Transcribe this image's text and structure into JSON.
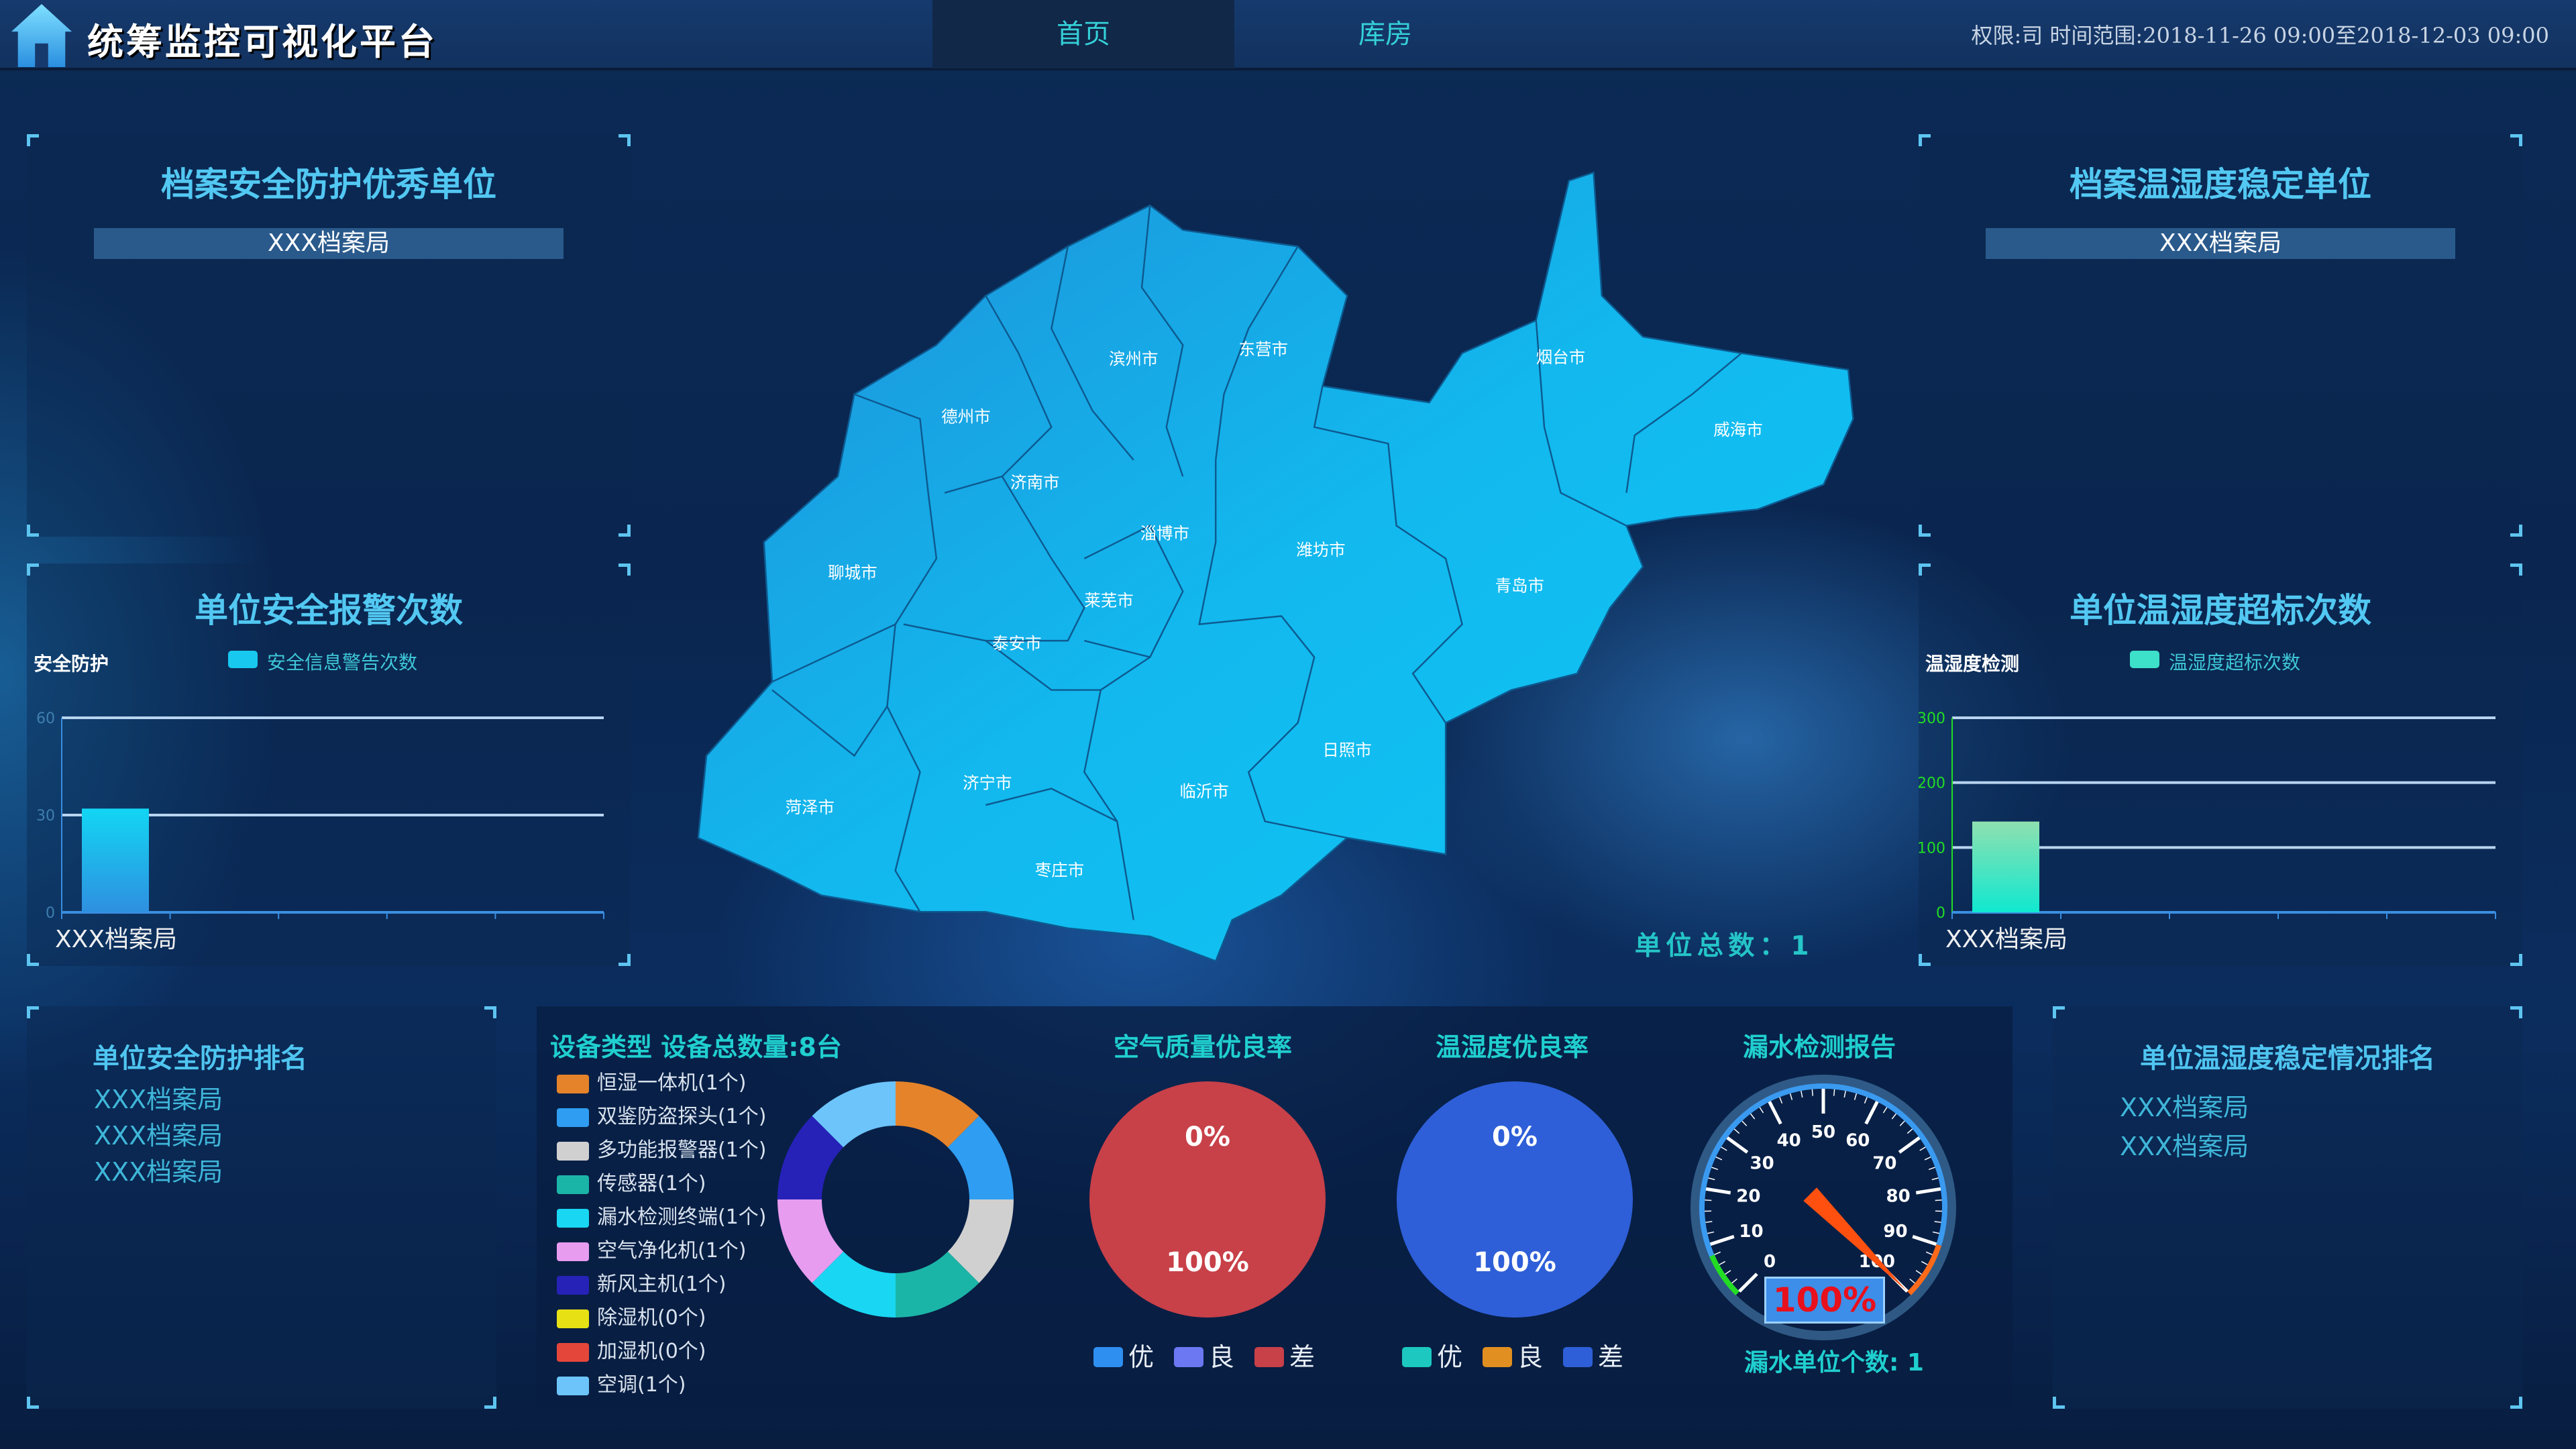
{
  "header": {
    "title": "统筹监控可视化平台",
    "tabs": [
      {
        "label": "首页",
        "active": true
      },
      {
        "label": "库房",
        "active": false
      }
    ],
    "info": "权限:司 时间范围:2018-11-26 09:00至2018-12-03 09:00"
  },
  "security_excellent": {
    "title": "档案安全防护优秀单位",
    "units": [
      "XXX档案局"
    ]
  },
  "humidity_stable": {
    "title": "档案温湿度稳定单位",
    "units": [
      "XXX档案局"
    ]
  },
  "security_alarm": {
    "title": "单位安全报警次数",
    "ylabel": "安全防护",
    "legend": "安全信息警告次数",
    "color": "#18c8ef"
  },
  "humidity_exceed": {
    "title": "单位温湿度超标次数",
    "ylabel": "温湿度检测",
    "legend": "温湿度超标次数",
    "color": "#3de0c8"
  },
  "map": {
    "cities": [
      "滨州市",
      "东营市",
      "烟台市",
      "威海市",
      "德州市",
      "济南市",
      "淄博市",
      "潍坊市",
      "青岛市",
      "聊城市",
      "莱芜市",
      "泰安市",
      "日照市",
      "济宁市",
      "临沂市",
      "菏泽市",
      "枣庄市"
    ],
    "total_label": "单位总数：1"
  },
  "security_rank": {
    "title": "单位安全防护排名",
    "items": [
      "XXX档案局",
      "XXX档案局",
      "XXX档案局"
    ]
  },
  "humidity_rank": {
    "title": "单位温湿度稳定情况排名",
    "items": [
      "XXX档案局",
      "XXX档案局"
    ]
  },
  "devices": {
    "title": "设备类型 设备总数量:8台"
  },
  "air_quality": {
    "title": "空气质量优良率",
    "top_label": "0%",
    "bottom_label": "100%"
  },
  "temp_humidity": {
    "title": "温湿度优良率",
    "top_label": "0%",
    "bottom_label": "100%"
  },
  "leak": {
    "title": "漏水检测报告",
    "value_label": "100%",
    "count_label": "漏水单位个数: 1"
  },
  "chart_data": [
    {
      "type": "bar",
      "categories": [
        "XXX档案局"
      ],
      "values": [
        32
      ],
      "ylim": [
        0,
        60
      ],
      "yticks": [
        "0",
        "30",
        "60"
      ],
      "series": [
        {
          "name": "安全信息警告次数",
          "values": [
            32
          ]
        }
      ]
    },
    {
      "type": "bar",
      "categories": [
        "XXX档案局"
      ],
      "values": [
        140
      ],
      "ylim": [
        0,
        300
      ],
      "yticks": [
        "0",
        "100",
        "200",
        "300"
      ],
      "series": [
        {
          "name": "温湿度超标次数",
          "values": [
            140
          ]
        }
      ]
    },
    {
      "type": "pie",
      "donut": true,
      "slices": [
        {
          "label": "恒湿一体机(1个)",
          "value": 1,
          "color": "#e5832a"
        },
        {
          "label": "双鉴防盗探头(1个)",
          "value": 1,
          "color": "#2f9df2"
        },
        {
          "label": "多功能报警器(1个)",
          "value": 1,
          "color": "#d0d0d0"
        },
        {
          "label": "传感器(1个)",
          "value": 1,
          "color": "#1bb5a8"
        },
        {
          "label": "漏水检测终端(1个)",
          "value": 1,
          "color": "#19d6f2"
        },
        {
          "label": "空气净化机(1个)",
          "value": 1,
          "color": "#e79cf0"
        },
        {
          "label": "新风主机(1个)",
          "value": 1,
          "color": "#2622b8"
        },
        {
          "label": "除湿机(0个)",
          "value": 0,
          "color": "#e6e014"
        },
        {
          "label": "加湿机(0个)",
          "value": 0,
          "color": "#e4473a"
        },
        {
          "label": "空调(1个)",
          "value": 1,
          "color": "#6cc4fb"
        }
      ]
    },
    {
      "type": "pie",
      "legend": [
        {
          "label": "优",
          "color": "#2f8ff0"
        },
        {
          "label": "良",
          "color": "#6b78f2"
        },
        {
          "label": "差",
          "color": "#c84048"
        }
      ],
      "values": [
        0,
        0,
        100
      ]
    },
    {
      "type": "pie",
      "legend": [
        {
          "label": "优",
          "color": "#1cc8c0"
        },
        {
          "label": "良",
          "color": "#e08f20"
        },
        {
          "label": "差",
          "color": "#2e5fd8"
        }
      ],
      "values": [
        0,
        0,
        100
      ]
    },
    {
      "type": "gauge",
      "min": 0,
      "max": 100,
      "value": 100,
      "ticks": [
        "0",
        "10",
        "20",
        "30",
        "40",
        "50",
        "60",
        "70",
        "80",
        "90",
        "100"
      ]
    }
  ]
}
